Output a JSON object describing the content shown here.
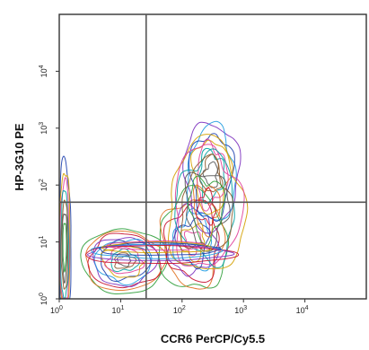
{
  "chart_data": {
    "type": "contour",
    "xlabel": "CCR6 PerCP/Cy5.5",
    "ylabel": "HP-3G10 PE",
    "x_scale": "log",
    "y_scale": "log",
    "xlim": [
      1,
      100000
    ],
    "ylim": [
      1,
      100000
    ],
    "x_ticks": [
      "10^0",
      "10^1",
      "10^2",
      "10^3",
      "10^4"
    ],
    "y_ticks": [
      "10^0",
      "10^1",
      "10^2",
      "10^3",
      "10^4"
    ],
    "quadrant_gate": {
      "x": 26,
      "y": 50
    },
    "grid": false,
    "populations": [
      {
        "name": "",
        "x_center": 10,
        "y_center": 4,
        "x_range": [
          1.3,
          40
        ],
        "y_range": [
          1.3,
          14
        ]
      },
      {
        "name": "",
        "x_center": 200,
        "y_center": 30,
        "x_range": [
          40,
          1200
        ],
        "y_range": [
          1.3,
          1000
        ]
      },
      {
        "name": "",
        "x_center": 1.1,
        "y_center": 6,
        "x_range": [
          1,
          1.6
        ],
        "y_range": [
          1,
          300
        ]
      }
    ],
    "contour_colors": [
      "#2f9e3a",
      "#e07020",
      "#c8102e",
      "#7b2fbe",
      "#1f9be0",
      "#1c3fae",
      "#d4a000",
      "#e0409a",
      "#00a0a0",
      "#8a5a2b",
      "#555555"
    ]
  }
}
